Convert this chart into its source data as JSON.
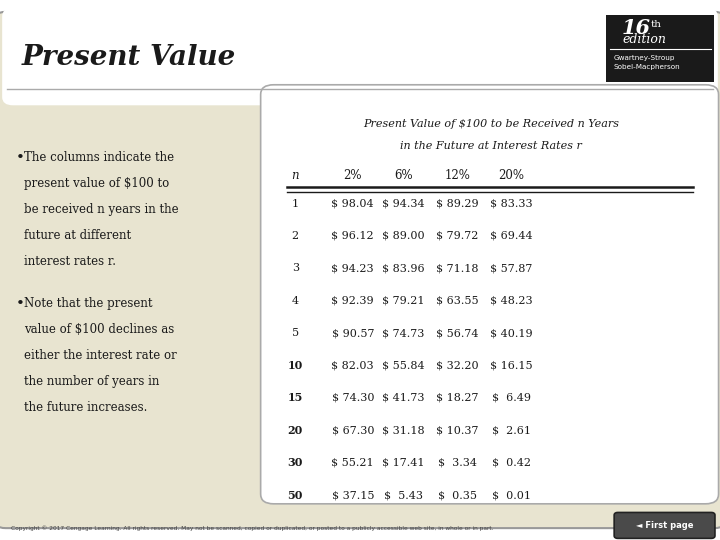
{
  "title": "Present Value",
  "edition_num": "16",
  "edition_sup": "th",
  "edition_sub": "edition",
  "edition_author1": "Gwartney-Stroup",
  "edition_author2": "Sobel-Macpherson",
  "table_title_line1": "Present Value of $100 to be Received ",
  "table_title_n": "n",
  "table_title_line1b": " Years",
  "table_title_line2": "in the Future at Interest Rates ",
  "table_title_r": "r",
  "col_headers": [
    "n",
    "2%",
    "6%",
    "12%",
    "20%"
  ],
  "rows": [
    [
      "1",
      "$ 98.04",
      "$ 94.34",
      "$ 89.29",
      "$ 83.33"
    ],
    [
      "2",
      "$ 96.12",
      "$ 89.00",
      "$ 79.72",
      "$ 69.44"
    ],
    [
      "3",
      "$ 94.23",
      "$ 83.96",
      "$ 71.18",
      "$ 57.87"
    ],
    [
      "4",
      "$ 92.39",
      "$ 79.21",
      "$ 63.55",
      "$ 48.23"
    ],
    [
      "5",
      "$ 90.57",
      "$ 74.73",
      "$ 56.74",
      "$ 40.19"
    ],
    [
      "10",
      "$ 82.03",
      "$ 55.84",
      "$ 32.20",
      "$ 16.15"
    ],
    [
      "15",
      "$ 74.30",
      "$ 41.73",
      "$ 18.27",
      "$  6.49"
    ],
    [
      "20",
      "$ 67.30",
      "$ 31.18",
      "$ 10.37",
      "$  2.61"
    ],
    [
      "30",
      "$ 55.21",
      "$ 17.41",
      "$  3.34",
      "$  0.42"
    ],
    [
      "50",
      "$ 37.15",
      "$  5.43",
      "$  0.35",
      "$  0.01"
    ]
  ],
  "bullet1_bold": "The columns indicate the\npresent value of $100 to\nbe received ",
  "bullet1_n": "n",
  "bullet1_rest": " years in the\nfuture at different\ninterest rates ",
  "bullet1_r": "r",
  "bullet1_end": ".",
  "bullet2": "Note that the present\nvalue of $100 declines as\neither the interest rate or\nthe number of years in\nthe future increases.",
  "bg_color": "#e8e4d0",
  "white": "#ffffff",
  "black": "#1a1a1a",
  "copyright": "Copyright © 2017 Cengage Learning. All rights reserved. May not be scanned, copied or duplicated, or posted to a publicly accessible web site, in whole or in part."
}
